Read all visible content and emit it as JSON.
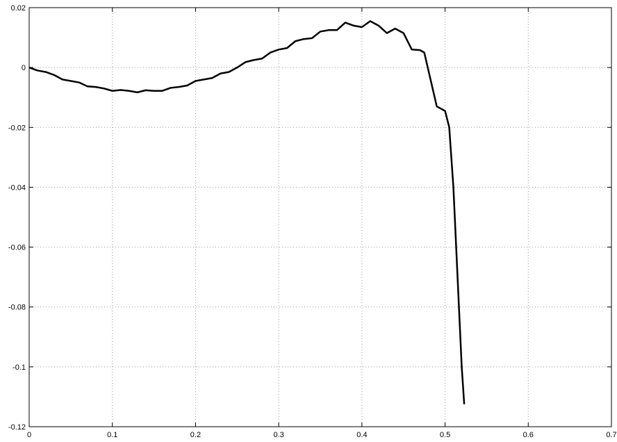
{
  "chart_data": {
    "type": "line",
    "x": [
      0,
      0.01,
      0.02,
      0.03,
      0.04,
      0.05,
      0.06,
      0.07,
      0.08,
      0.09,
      0.1,
      0.11,
      0.12,
      0.13,
      0.14,
      0.15,
      0.16,
      0.17,
      0.18,
      0.19,
      0.2,
      0.21,
      0.22,
      0.23,
      0.24,
      0.25,
      0.26,
      0.27,
      0.28,
      0.29,
      0.3,
      0.31,
      0.32,
      0.33,
      0.34,
      0.35,
      0.36,
      0.37,
      0.38,
      0.39,
      0.4,
      0.41,
      0.42,
      0.43,
      0.44,
      0.45,
      0.46,
      0.47,
      0.475,
      0.48,
      0.49,
      0.5,
      0.505,
      0.51,
      0.515,
      0.52,
      0.523
    ],
    "series": [
      {
        "color": "#000000",
        "values": [
          0,
          -0.001,
          -0.0015,
          -0.0025,
          -0.004,
          -0.0045,
          -0.005,
          -0.0063,
          -0.0065,
          -0.007,
          -0.0078,
          -0.0075,
          -0.0078,
          -0.0083,
          -0.0076,
          -0.0078,
          -0.0078,
          -0.0068,
          -0.0065,
          -0.006,
          -0.0045,
          -0.004,
          -0.0035,
          -0.002,
          -0.0015,
          0.0,
          0.0018,
          0.0025,
          0.003,
          0.005,
          0.006,
          0.0065,
          0.0088,
          0.0095,
          0.0098,
          0.012,
          0.0125,
          0.0125,
          0.015,
          0.014,
          0.0135,
          0.0155,
          0.014,
          0.0115,
          0.013,
          0.0115,
          0.006,
          0.0058,
          0.005,
          -0.001,
          -0.013,
          -0.0145,
          -0.02,
          -0.04,
          -0.07,
          -0.1,
          -0.1125
        ]
      }
    ],
    "xlim": [
      0,
      0.7
    ],
    "xticks": [
      0,
      0.1,
      0.2,
      0.3,
      0.4,
      0.5,
      0.6,
      0.7
    ],
    "ylim": [
      -0.12,
      0.02
    ],
    "yticks": [
      -0.12,
      -0.1,
      -0.08,
      -0.06,
      -0.04,
      -0.02,
      0,
      0.02
    ],
    "grid": true
  }
}
